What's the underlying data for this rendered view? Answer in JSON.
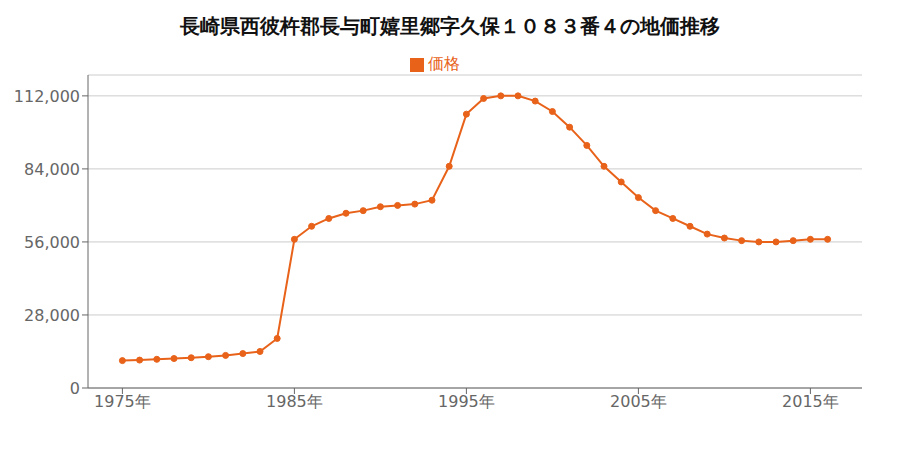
{
  "chart_data": {
    "type": "line",
    "title": "長崎県西彼杵郡長与町嬉里郷字久保１０８３番４の地価推移",
    "x": [
      1975,
      1976,
      1977,
      1978,
      1979,
      1980,
      1981,
      1982,
      1983,
      1984,
      1985,
      1986,
      1987,
      1988,
      1989,
      1990,
      1991,
      1992,
      1993,
      1994,
      1995,
      1996,
      1997,
      1998,
      1999,
      2000,
      2001,
      2002,
      2003,
      2004,
      2005,
      2006,
      2007,
      2008,
      2009,
      2010,
      2011,
      2012,
      2013,
      2014,
      2015,
      2016
    ],
    "series": [
      {
        "name": "価格",
        "color": "#e8621a",
        "marker": "circle",
        "values": [
          10500,
          10700,
          11000,
          11300,
          11600,
          12000,
          12500,
          13200,
          14000,
          19000,
          57000,
          62000,
          65000,
          67000,
          68000,
          69500,
          70000,
          70500,
          72000,
          85000,
          105000,
          111000,
          112000,
          112000,
          110000,
          106000,
          100000,
          93000,
          85000,
          79000,
          73000,
          68000,
          65000,
          62000,
          59000,
          57500,
          56500,
          56000,
          56000,
          56500,
          57000,
          57000
        ]
      }
    ],
    "xlim": [
      1973,
      2018
    ],
    "xticks": [
      {
        "value": 1975,
        "label": "1975年"
      },
      {
        "value": 1985,
        "label": "1985年"
      },
      {
        "value": 1995,
        "label": "1995年"
      },
      {
        "value": 2005,
        "label": "2005年"
      },
      {
        "value": 2015,
        "label": "2015年"
      }
    ],
    "ylim": [
      0,
      120000
    ],
    "yticks": [
      0,
      {
        "value": 28000,
        "label": "28,000"
      },
      {
        "value": 56000,
        "label": "56,000"
      },
      {
        "value": 84000,
        "label": "84,000"
      },
      {
        "value": 112000,
        "label": "112,000"
      }
    ],
    "grid": true,
    "legend": "top"
  }
}
